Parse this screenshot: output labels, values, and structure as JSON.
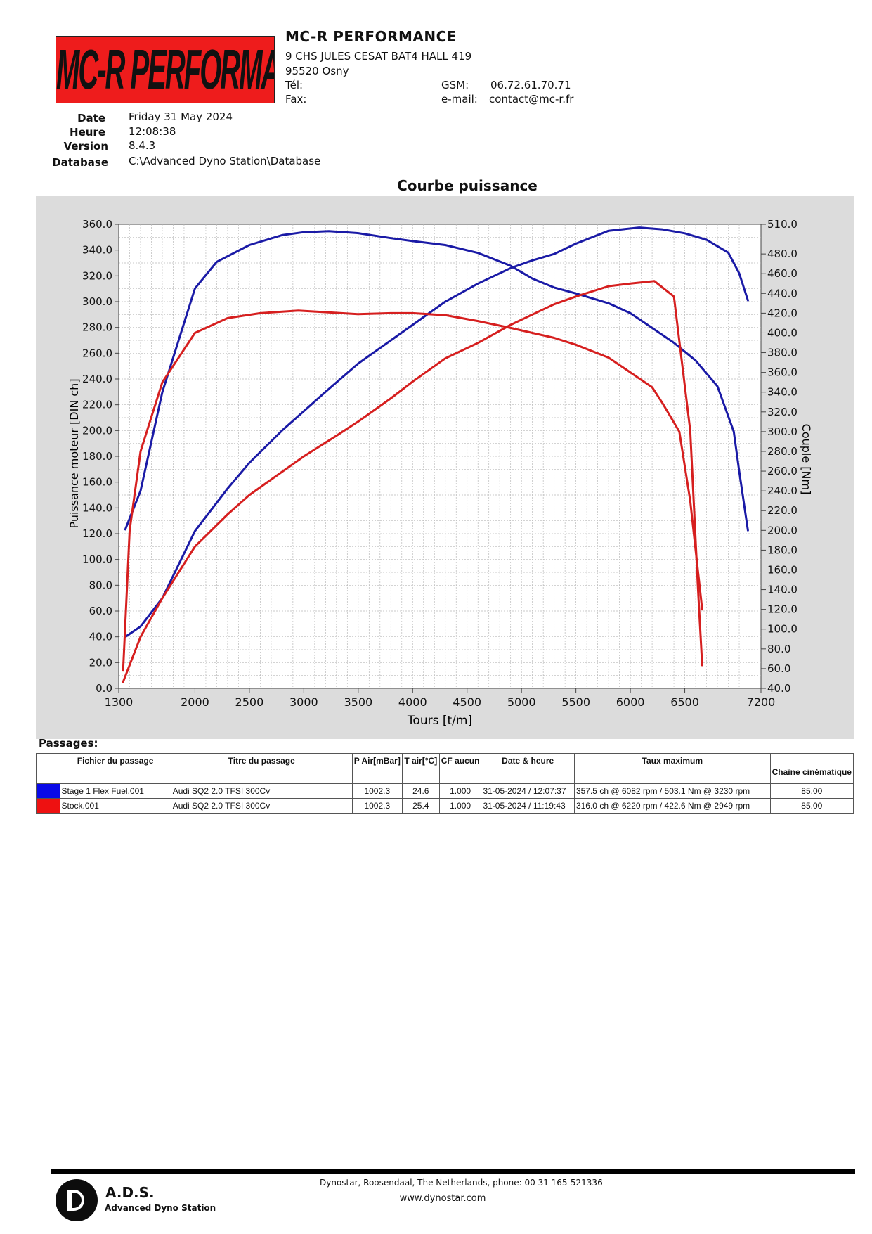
{
  "header": {
    "logo_text": "MC-R PERFORMANCE",
    "company": "MC-R PERFORMANCE",
    "address1": "9 CHS JULES CESAT BAT4 HALL 419",
    "address2": "95520 Osny",
    "tel_label": "Tél:",
    "fax_label": "Fax:",
    "gsm_label": "GSM:",
    "gsm_value": "06.72.61.70.71",
    "email_label": "e-mail:",
    "email_value": "contact@mc-r.fr"
  },
  "meta": {
    "date_label": "Date",
    "date_value": "Friday 31 May 2024",
    "heure_label": "Heure",
    "heure_value": "12:08:38",
    "version_label": "Version",
    "version_value": "8.4.3",
    "database_label": "Database",
    "database_value": "C:\\Advanced Dyno Station\\Database"
  },
  "chart_data": {
    "type": "line",
    "title": "Courbe puissance",
    "xlabel": "Tours [t/m]",
    "ylabel": "Puissance moteur [DIN ch]",
    "y2label": "Couple [Nm]",
    "xlim": [
      1300,
      7200
    ],
    "ylim": [
      0,
      360
    ],
    "y2lim": [
      40,
      510
    ],
    "x_ticks": [
      1300,
      2000,
      2500,
      3000,
      3500,
      4000,
      4500,
      5000,
      5500,
      6000,
      6500,
      7200
    ],
    "y_ticks": [
      "0.0",
      "20.0",
      "40.0",
      "60.0",
      "80.0",
      "100.0",
      "120.0",
      "140.0",
      "160.0",
      "180.0",
      "200.0",
      "220.0",
      "240.0",
      "260.0",
      "280.0",
      "300.0",
      "320.0",
      "340.0",
      "360.0"
    ],
    "y2_ticks": [
      "40.0",
      "60.0",
      "80.0",
      "100.0",
      "120.0",
      "140.0",
      "160.0",
      "180.0",
      "200.0",
      "220.0",
      "240.0",
      "260.0",
      "280.0",
      "300.0",
      "320.0",
      "340.0",
      "360.0",
      "380.0",
      "400.0",
      "420.0",
      "440.0",
      "460.0",
      "480.0",
      "510.0"
    ],
    "grid": true,
    "series": [
      {
        "name": "Stage 1 Flex Fuel.001",
        "quantity": "power",
        "axis": "left",
        "color": "#1a1aa6",
        "x": [
          1360,
          1500,
          1700,
          2000,
          2300,
          2500,
          2800,
          3000,
          3200,
          3500,
          3800,
          4000,
          4300,
          4600,
          4900,
          5100,
          5300,
          5500,
          5800,
          6082,
          6300,
          6500,
          6700,
          6900,
          7000,
          7080
        ],
        "y": [
          40,
          48,
          70,
          122,
          155,
          175,
          200,
          215,
          230,
          252,
          270,
          282,
          300,
          314,
          326,
          332,
          337,
          345,
          355,
          357.5,
          356,
          353,
          348,
          338,
          322,
          301
        ]
      },
      {
        "name": "Stage 1 Flex Fuel.001",
        "quantity": "torque",
        "axis": "right",
        "color": "#1a1aa6",
        "x": [
          1360,
          1500,
          1700,
          2000,
          2200,
          2500,
          2800,
          3000,
          3230,
          3500,
          3800,
          4000,
          4300,
          4600,
          4900,
          5100,
          5300,
          5500,
          5800,
          6000,
          6200,
          6400,
          6600,
          6800,
          6950,
          7000,
          7080
        ],
        "y": [
          201,
          240,
          340,
          445,
          472,
          489,
          499,
          502,
          503.1,
          501,
          496,
          493,
          489,
          481,
          468,
          455,
          446,
          440,
          430,
          420,
          405,
          390,
          372,
          346,
          300,
          260,
          200
        ]
      },
      {
        "name": "Stock.001",
        "quantity": "power",
        "axis": "left",
        "color": "#d61f1f",
        "x": [
          1340,
          1500,
          1700,
          2000,
          2300,
          2500,
          2800,
          3000,
          3300,
          3500,
          3800,
          4000,
          4300,
          4600,
          4900,
          5100,
          5300,
          5500,
          5800,
          6000,
          6220,
          6400,
          6550,
          6620,
          6660
        ],
        "y": [
          5,
          40,
          70,
          110,
          135,
          150,
          168,
          180,
          196,
          207,
          225,
          238,
          256,
          268,
          282,
          290,
          298,
          304,
          312,
          314,
          316,
          304,
          200,
          80,
          18
        ]
      },
      {
        "name": "Stock.001",
        "quantity": "torque",
        "axis": "right",
        "color": "#d61f1f",
        "x": [
          1340,
          1400,
          1500,
          1700,
          2000,
          2300,
          2600,
          2949,
          3200,
          3500,
          3800,
          4000,
          4300,
          4600,
          4900,
          5100,
          5300,
          5500,
          5800,
          6000,
          6200,
          6300,
          6450,
          6550,
          6620,
          6660
        ],
        "y": [
          58,
          200,
          280,
          350,
          400,
          415,
          420,
          422.6,
          421,
          419,
          420,
          420,
          418,
          412,
          405,
          400,
          395,
          388,
          375,
          360,
          345,
          328,
          300,
          230,
          160,
          120
        ]
      }
    ],
    "table": {
      "section_label": "Passages:",
      "columns": [
        "",
        "Fichier du passage",
        "Titre du passage",
        "P Air[mBar]",
        "T air[°C]",
        "CF aucun",
        "Date & heure",
        "Taux maximum",
        "Chaîne cinématique"
      ],
      "rows": [
        {
          "color": "#0a0ae8",
          "file": "Stage 1 Flex Fuel.001",
          "title": "Audi SQ2 2.0 TFSI 300Cv",
          "p_air": "1002.3",
          "t_air": "24.6",
          "cf": "1.000",
          "datetime": "31-05-2024 / 12:07:37",
          "max": "357.5 ch @ 6082 rpm / 503.1 Nm @ 3230 rpm",
          "chain": "85.00"
        },
        {
          "color": "#ee1111",
          "file": "Stock.001",
          "title": "Audi SQ2 2.0 TFSI 300Cv",
          "p_air": "1002.3",
          "t_air": "25.4",
          "cf": "1.000",
          "datetime": "31-05-2024 / 11:19:43",
          "max": "316.0 ch @ 6220 rpm / 422.6 Nm @ 2949 rpm",
          "chain": "85.00"
        }
      ]
    }
  },
  "footer": {
    "logo_title": "A.D.S.",
    "logo_subtitle": "Advanced Dyno Station",
    "contact": "Dynostar,  Roosendaal, The Netherlands, phone: 00 31 165-521336",
    "url": "www.dynostar.com"
  }
}
